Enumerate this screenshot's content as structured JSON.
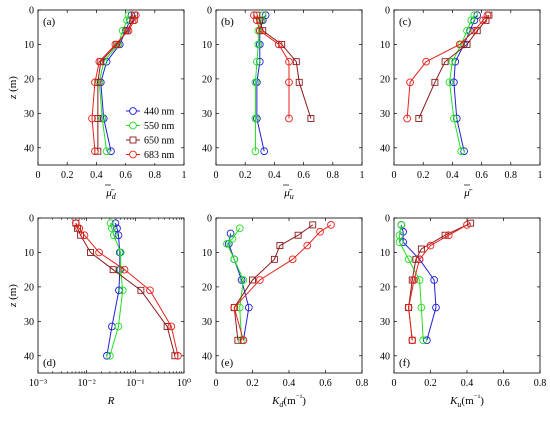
{
  "colors": {
    "440 nm": "#1f1fd6",
    "550 nm": "#22e022",
    "650 nm": "#8b1a1a",
    "683 nm": "#e8221a"
  },
  "legend": [
    {
      "label": "440 nm",
      "color": "#1f1fd6",
      "marker": "circle"
    },
    {
      "label": "550 nm",
      "color": "#22e022",
      "marker": "circle"
    },
    {
      "label": "650 nm",
      "color": "#8b1a1a",
      "marker": "square"
    },
    {
      "label": "683 nm",
      "color": "#e8221a",
      "marker": "circle"
    }
  ],
  "chart_data": [
    {
      "id": "a",
      "panel_label": "(a)",
      "type": "line",
      "xlabel": "μ̄d",
      "ylabel": "z (m)",
      "xlim": [
        0,
        1
      ],
      "ylim": [
        0,
        45
      ],
      "y_reversed": true,
      "x_scale": "linear",
      "x_ticks": [
        0,
        0.2,
        0.4,
        0.6,
        0.8,
        1
      ],
      "x_tick_labels": [
        "0",
        "0.2",
        "0.4",
        "0.6",
        "0.8",
        "1"
      ],
      "y_ticks": [
        0,
        10,
        20,
        30,
        40
      ],
      "y_tick_labels": [
        "0",
        "10",
        "20",
        "30",
        "40"
      ],
      "series": [
        {
          "name": "440 nm",
          "marker": "circle",
          "points": [
            [
              0.64,
              1.5
            ],
            [
              0.63,
              3
            ],
            [
              0.6,
              6
            ],
            [
              0.56,
              10
            ],
            [
              0.47,
              15
            ],
            [
              0.43,
              21
            ],
            [
              0.45,
              31.5
            ],
            [
              0.5,
              41
            ]
          ]
        },
        {
          "name": "550 nm",
          "marker": "circle",
          "points": [
            [
              0.62,
              1.5
            ],
            [
              0.61,
              3
            ],
            [
              0.58,
              6
            ],
            [
              0.55,
              10
            ],
            [
              0.45,
              15
            ],
            [
              0.42,
              21
            ],
            [
              0.44,
              31.5
            ],
            [
              0.47,
              41
            ]
          ]
        },
        {
          "name": "650 nm",
          "marker": "square",
          "points": [
            [
              0.66,
              1.5
            ],
            [
              0.65,
              3
            ],
            [
              0.61,
              6
            ],
            [
              0.54,
              10
            ],
            [
              0.43,
              15
            ],
            [
              0.41,
              21
            ],
            [
              0.41,
              31.5
            ],
            [
              0.41,
              41
            ]
          ]
        },
        {
          "name": "683 nm",
          "marker": "circle",
          "points": [
            [
              0.67,
              1.5
            ],
            [
              0.66,
              3
            ],
            [
              0.62,
              6
            ],
            [
              0.53,
              10
            ],
            [
              0.42,
              15
            ],
            [
              0.39,
              21
            ],
            [
              0.37,
              31.5
            ],
            [
              0.39,
              41
            ]
          ]
        }
      ]
    },
    {
      "id": "b",
      "panel_label": "(b)",
      "type": "line",
      "xlabel": "μ̄u",
      "ylabel": "",
      "xlim": [
        0,
        1
      ],
      "ylim": [
        0,
        45
      ],
      "y_reversed": true,
      "x_scale": "linear",
      "x_ticks": [
        0,
        0.2,
        0.4,
        0.6,
        0.8,
        1
      ],
      "x_tick_labels": [
        "0",
        "0.2",
        "0.4",
        "0.6",
        "0.8",
        "1"
      ],
      "y_ticks": [
        0,
        10,
        20,
        30,
        40
      ],
      "y_tick_labels": [
        "0",
        "10",
        "20",
        "30",
        "40"
      ],
      "series": [
        {
          "name": "440 nm",
          "marker": "circle",
          "points": [
            [
              0.34,
              1.5
            ],
            [
              0.32,
              3
            ],
            [
              0.3,
              6
            ],
            [
              0.3,
              10
            ],
            [
              0.3,
              15
            ],
            [
              0.28,
              21
            ],
            [
              0.28,
              31.5
            ],
            [
              0.33,
              41
            ]
          ]
        },
        {
          "name": "550 nm",
          "marker": "circle",
          "points": [
            [
              0.32,
              1.5
            ],
            [
              0.31,
              3
            ],
            [
              0.29,
              6
            ],
            [
              0.29,
              10
            ],
            [
              0.28,
              15
            ],
            [
              0.27,
              21
            ],
            [
              0.27,
              31.5
            ],
            [
              0.27,
              41
            ]
          ]
        },
        {
          "name": "650 nm",
          "marker": "square",
          "points": [
            [
              0.28,
              1.5
            ],
            [
              0.3,
              3
            ],
            [
              0.32,
              6
            ],
            [
              0.45,
              10
            ],
            [
              0.55,
              15
            ],
            [
              0.57,
              21
            ],
            [
              0.65,
              31.5
            ]
          ]
        },
        {
          "name": "683 nm",
          "marker": "circle",
          "points": [
            [
              0.26,
              1.5
            ],
            [
              0.28,
              3
            ],
            [
              0.3,
              6
            ],
            [
              0.43,
              10
            ],
            [
              0.5,
              15
            ],
            [
              0.5,
              21
            ],
            [
              0.5,
              31.5
            ]
          ]
        }
      ]
    },
    {
      "id": "c",
      "panel_label": "(c)",
      "type": "line",
      "xlabel": "μ̄",
      "ylabel": "",
      "xlim": [
        0,
        1
      ],
      "ylim": [
        0,
        45
      ],
      "y_reversed": true,
      "x_scale": "linear",
      "x_ticks": [
        0,
        0.2,
        0.4,
        0.6,
        0.8,
        1
      ],
      "x_tick_labels": [
        "0",
        "0.2",
        "0.4",
        "0.6",
        "0.8",
        "1"
      ],
      "y_ticks": [
        0,
        10,
        20,
        30,
        40
      ],
      "y_tick_labels": [
        "0",
        "10",
        "20",
        "30",
        "40"
      ],
      "series": [
        {
          "name": "440 nm",
          "marker": "circle",
          "points": [
            [
              0.57,
              1.5
            ],
            [
              0.55,
              3
            ],
            [
              0.52,
              6
            ],
            [
              0.48,
              10
            ],
            [
              0.42,
              15
            ],
            [
              0.41,
              21
            ],
            [
              0.43,
              31.5
            ],
            [
              0.48,
              41
            ]
          ]
        },
        {
          "name": "550 nm",
          "marker": "circle",
          "points": [
            [
              0.55,
              1.5
            ],
            [
              0.53,
              3
            ],
            [
              0.5,
              6
            ],
            [
              0.46,
              10
            ],
            [
              0.4,
              15
            ],
            [
              0.38,
              21
            ],
            [
              0.41,
              31.5
            ],
            [
              0.46,
              41
            ]
          ]
        },
        {
          "name": "650 nm",
          "marker": "square",
          "points": [
            [
              0.65,
              1.5
            ],
            [
              0.63,
              3
            ],
            [
              0.57,
              6
            ],
            [
              0.5,
              10
            ],
            [
              0.35,
              15
            ],
            [
              0.28,
              21
            ],
            [
              0.17,
              31.5
            ]
          ]
        },
        {
          "name": "683 nm",
          "marker": "circle",
          "points": [
            [
              0.64,
              1.5
            ],
            [
              0.61,
              3
            ],
            [
              0.55,
              6
            ],
            [
              0.45,
              10
            ],
            [
              0.22,
              15
            ],
            [
              0.11,
              21
            ],
            [
              0.09,
              31.5
            ]
          ]
        }
      ]
    },
    {
      "id": "d",
      "panel_label": "(d)",
      "type": "line",
      "xlabel": "R",
      "ylabel": "z (m)",
      "xlim": [
        0.001,
        1
      ],
      "ylim": [
        0,
        45
      ],
      "y_reversed": true,
      "x_scale": "log",
      "x_ticks": [
        0.001,
        0.01,
        0.1,
        1
      ],
      "x_tick_labels": [
        "10⁻³",
        "10⁻²",
        "10⁻¹",
        "10⁰"
      ],
      "y_ticks": [
        0,
        10,
        20,
        30,
        40
      ],
      "y_tick_labels": [
        "0",
        "10",
        "20",
        "30",
        "40"
      ],
      "series": [
        {
          "name": "440 nm",
          "marker": "circle",
          "points": [
            [
              0.039,
              1.5
            ],
            [
              0.042,
              3
            ],
            [
              0.045,
              5
            ],
            [
              0.048,
              10
            ],
            [
              0.048,
              15
            ],
            [
              0.046,
              21
            ],
            [
              0.033,
              31.5
            ],
            [
              0.026,
              40
            ]
          ]
        },
        {
          "name": "550 nm",
          "marker": "circle",
          "points": [
            [
              0.031,
              1.5
            ],
            [
              0.033,
              3
            ],
            [
              0.036,
              5
            ],
            [
              0.05,
              10
            ],
            [
              0.05,
              15
            ],
            [
              0.055,
              21
            ],
            [
              0.045,
              31.5
            ],
            [
              0.03,
              40
            ]
          ]
        },
        {
          "name": "650 nm",
          "marker": "square",
          "points": [
            [
              0.006,
              1.5
            ],
            [
              0.0065,
              3
            ],
            [
              0.0075,
              5
            ],
            [
              0.012,
              10
            ],
            [
              0.035,
              15
            ],
            [
              0.13,
              21
            ],
            [
              0.45,
              31.5
            ],
            [
              0.65,
              40
            ]
          ]
        },
        {
          "name": "683 nm",
          "marker": "circle",
          "points": [
            [
              0.006,
              1.5
            ],
            [
              0.007,
              3
            ],
            [
              0.009,
              5
            ],
            [
              0.018,
              10
            ],
            [
              0.06,
              15
            ],
            [
              0.2,
              21
            ],
            [
              0.55,
              31.5
            ],
            [
              0.75,
              40
            ]
          ]
        }
      ]
    },
    {
      "id": "e",
      "panel_label": "(e)",
      "type": "line",
      "xlabel": "Kd (m⁻¹)",
      "ylabel": "",
      "xlim": [
        0,
        0.8
      ],
      "ylim": [
        0,
        45
      ],
      "y_reversed": true,
      "x_scale": "linear",
      "x_ticks": [
        0,
        0.2,
        0.4,
        0.6,
        0.8
      ],
      "x_tick_labels": [
        "0",
        "0.2",
        "0.4",
        "0.6",
        "0.8"
      ],
      "y_ticks": [
        0,
        10,
        20,
        30,
        40
      ],
      "y_tick_labels": [
        "0",
        "10",
        "20",
        "30",
        "40"
      ],
      "series": [
        {
          "name": "440 nm",
          "marker": "circle",
          "points": [
            [
              0.08,
              4.5
            ],
            [
              0.07,
              7.5
            ],
            [
              0.1,
              12
            ],
            [
              0.14,
              18
            ],
            [
              0.18,
              26
            ],
            [
              0.15,
              35.5
            ]
          ]
        },
        {
          "name": "550 nm",
          "marker": "circle",
          "points": [
            [
              0.13,
              3
            ],
            [
              0.09,
              6
            ],
            [
              0.06,
              7.5
            ],
            [
              0.1,
              12
            ],
            [
              0.15,
              18
            ],
            [
              0.13,
              26
            ],
            [
              0.14,
              35.5
            ]
          ]
        },
        {
          "name": "650 nm",
          "marker": "square",
          "points": [
            [
              0.53,
              2
            ],
            [
              0.45,
              5
            ],
            [
              0.35,
              8
            ],
            [
              0.32,
              12
            ],
            [
              0.2,
              18
            ],
            [
              0.1,
              26
            ],
            [
              0.12,
              35.5
            ]
          ]
        },
        {
          "name": "683 nm",
          "marker": "circle",
          "points": [
            [
              0.63,
              2
            ],
            [
              0.57,
              4
            ],
            [
              0.5,
              8
            ],
            [
              0.42,
              12
            ],
            [
              0.24,
              18
            ],
            [
              0.1,
              26
            ],
            [
              0.15,
              35.5
            ]
          ]
        }
      ]
    },
    {
      "id": "f",
      "panel_label": "(f)",
      "type": "line",
      "xlabel": "Ku (m⁻¹)",
      "ylabel": "",
      "xlim": [
        0,
        0.8
      ],
      "ylim": [
        0,
        45
      ],
      "y_reversed": true,
      "x_scale": "linear",
      "x_ticks": [
        0,
        0.2,
        0.4,
        0.6,
        0.8
      ],
      "x_tick_labels": [
        "0",
        "0.2",
        "0.4",
        "0.6",
        "0.8"
      ],
      "y_ticks": [
        0,
        10,
        20,
        30,
        40
      ],
      "y_tick_labels": [
        "0",
        "10",
        "20",
        "30",
        "40"
      ],
      "series": [
        {
          "name": "440 nm",
          "marker": "circle",
          "points": [
            [
              0.04,
              2
            ],
            [
              0.05,
              4
            ],
            [
              0.05,
              7
            ],
            [
              0.14,
              12
            ],
            [
              0.22,
              18
            ],
            [
              0.23,
              26
            ],
            [
              0.18,
              35.5
            ]
          ]
        },
        {
          "name": "550 nm",
          "marker": "circle",
          "points": [
            [
              0.04,
              2
            ],
            [
              0.03,
              5
            ],
            [
              0.03,
              7
            ],
            [
              0.08,
              12
            ],
            [
              0.14,
              18
            ],
            [
              0.15,
              26
            ],
            [
              0.16,
              35.5
            ]
          ]
        },
        {
          "name": "650 nm",
          "marker": "square",
          "points": [
            [
              0.42,
              1.5
            ],
            [
              0.28,
              5
            ],
            [
              0.15,
              9
            ],
            [
              0.12,
              12
            ],
            [
              0.1,
              18
            ],
            [
              0.08,
              26
            ],
            [
              0.1,
              35.5
            ]
          ]
        },
        {
          "name": "683 nm",
          "marker": "circle",
          "points": [
            [
              0.4,
              2
            ],
            [
              0.3,
              5
            ],
            [
              0.2,
              8
            ],
            [
              0.14,
              12
            ],
            [
              0.11,
              18
            ],
            [
              0.08,
              26
            ],
            [
              0.1,
              35.5
            ]
          ]
        }
      ]
    }
  ]
}
